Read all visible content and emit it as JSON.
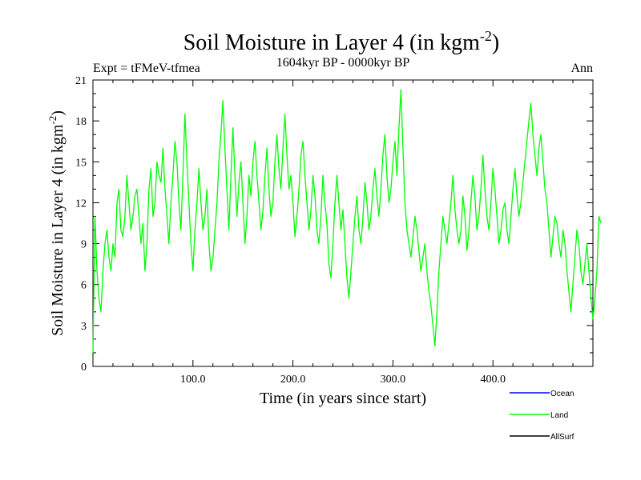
{
  "chart_data": {
    "type": "line",
    "title": "Soil Moisture in Layer 4 (in kgm",
    "title_sup": "-2",
    "title_end": ")",
    "subtitle": "1604kyr BP - 0000kyr BP",
    "expt_label": "Expt = tFMeV-tfmea",
    "season_label": "Ann",
    "xlabel": "Time (in years since start)",
    "ylabel": "Soil Moisture in Layer 4 (in kgm",
    "ylabel_sup": "-2",
    "ylabel_end": ")",
    "xlim": [
      0,
      500
    ],
    "ylim": [
      0,
      21
    ],
    "x_ticks": [
      {
        "value": 100,
        "label": "100.0"
      },
      {
        "value": 200,
        "label": "200.0"
      },
      {
        "value": 300,
        "label": "300.0"
      },
      {
        "value": 400,
        "label": "400.0"
      }
    ],
    "y_ticks": [
      {
        "value": 0,
        "label": "0"
      },
      {
        "value": 3,
        "label": "3"
      },
      {
        "value": 6,
        "label": "6"
      },
      {
        "value": 9,
        "label": "9"
      },
      {
        "value": 12,
        "label": "12"
      },
      {
        "value": 15,
        "label": "15"
      },
      {
        "value": 18,
        "label": "18"
      },
      {
        "value": 21,
        "label": "21"
      }
    ],
    "legend": [
      {
        "name": "Ocean",
        "color": "#0000ff"
      },
      {
        "name": "Land",
        "color": "#00ff00"
      },
      {
        "name": "AllSurf",
        "color": "#000000"
      }
    ],
    "series": [
      {
        "name": "Land",
        "color": "#00ff00",
        "x_step": 2,
        "values": [
          1.0,
          11.0,
          7.0,
          5.0,
          4.0,
          7.0,
          9.0,
          10.0,
          8.0,
          7.0,
          9.0,
          8.0,
          12.0,
          13.0,
          10.0,
          9.5,
          11.0,
          14.0,
          12.0,
          10.0,
          11.0,
          12.5,
          13.0,
          11.0,
          9.0,
          10.5,
          7.0,
          9.0,
          13.0,
          14.5,
          11.0,
          12.0,
          15.0,
          14.0,
          13.5,
          16.0,
          13.0,
          11.0,
          9.0,
          12.0,
          14.0,
          16.5,
          15.0,
          12.0,
          10.0,
          14.0,
          18.5,
          15.0,
          12.0,
          9.0,
          7.0,
          10.0,
          12.0,
          14.5,
          12.0,
          10.0,
          11.0,
          13.0,
          9.0,
          7.0,
          8.0,
          10.0,
          12.0,
          15.0,
          17.0,
          19.5,
          16.0,
          13.0,
          10.0,
          14.0,
          17.5,
          14.0,
          11.0,
          13.5,
          15.0,
          12.0,
          9.0,
          11.0,
          14.0,
          12.5,
          15.0,
          16.5,
          14.0,
          12.0,
          10.0,
          11.5,
          14.0,
          16.0,
          13.0,
          11.0,
          12.0,
          15.0,
          17.0,
          14.5,
          13.0,
          16.0,
          18.5,
          15.5,
          13.0,
          14.0,
          12.0,
          9.5,
          11.0,
          13.0,
          15.5,
          16.5,
          14.0,
          12.0,
          10.0,
          11.5,
          14.0,
          12.5,
          10.0,
          9.0,
          11.0,
          14.0,
          12.0,
          10.5,
          7.5,
          6.5,
          9.0,
          12.0,
          14.0,
          12.0,
          10.0,
          11.5,
          9.0,
          6.5,
          5.0,
          7.0,
          9.0,
          11.0,
          12.5,
          10.0,
          9.0,
          11.0,
          13.5,
          12.0,
          10.0,
          11.0,
          13.0,
          14.5,
          12.5,
          11.0,
          13.0,
          15.5,
          17.0,
          14.0,
          12.0,
          13.0,
          15.0,
          16.5,
          14.0,
          17.5,
          20.3,
          16.0,
          12.0,
          10.0,
          9.0,
          8.0,
          9.5,
          11.0,
          10.0,
          8.5,
          7.0,
          8.0,
          9.0,
          7.0,
          5.5,
          4.5,
          3.0,
          1.5,
          4.0,
          7.0,
          9.0,
          11.0,
          10.0,
          9.0,
          10.5,
          12.0,
          14.0,
          11.5,
          10.0,
          9.0,
          10.0,
          12.5,
          11.0,
          8.5,
          10.0,
          12.0,
          14.0,
          12.5,
          10.0,
          11.0,
          13.0,
          15.5,
          13.0,
          11.0,
          10.0,
          12.0,
          14.5,
          13.0,
          11.0,
          9.0,
          10.0,
          11.5,
          12.0,
          10.0,
          9.0,
          11.0,
          13.0,
          14.5,
          12.5,
          11.0,
          12.0,
          13.5,
          15.0,
          16.5,
          18.0,
          19.3,
          17.0,
          15.5,
          14.0,
          16.0,
          17.0,
          15.0,
          13.0,
          12.0,
          10.0,
          8.0,
          9.5,
          11.0,
          10.5,
          9.0,
          8.0,
          10.0,
          9.0,
          7.0,
          5.5,
          4.0,
          6.0,
          8.0,
          10.0,
          9.0,
          7.0,
          6.0,
          7.5,
          9.0,
          7.0,
          5.0,
          3.5,
          5.0,
          7.0,
          11.0,
          10.5
        ]
      }
    ]
  }
}
